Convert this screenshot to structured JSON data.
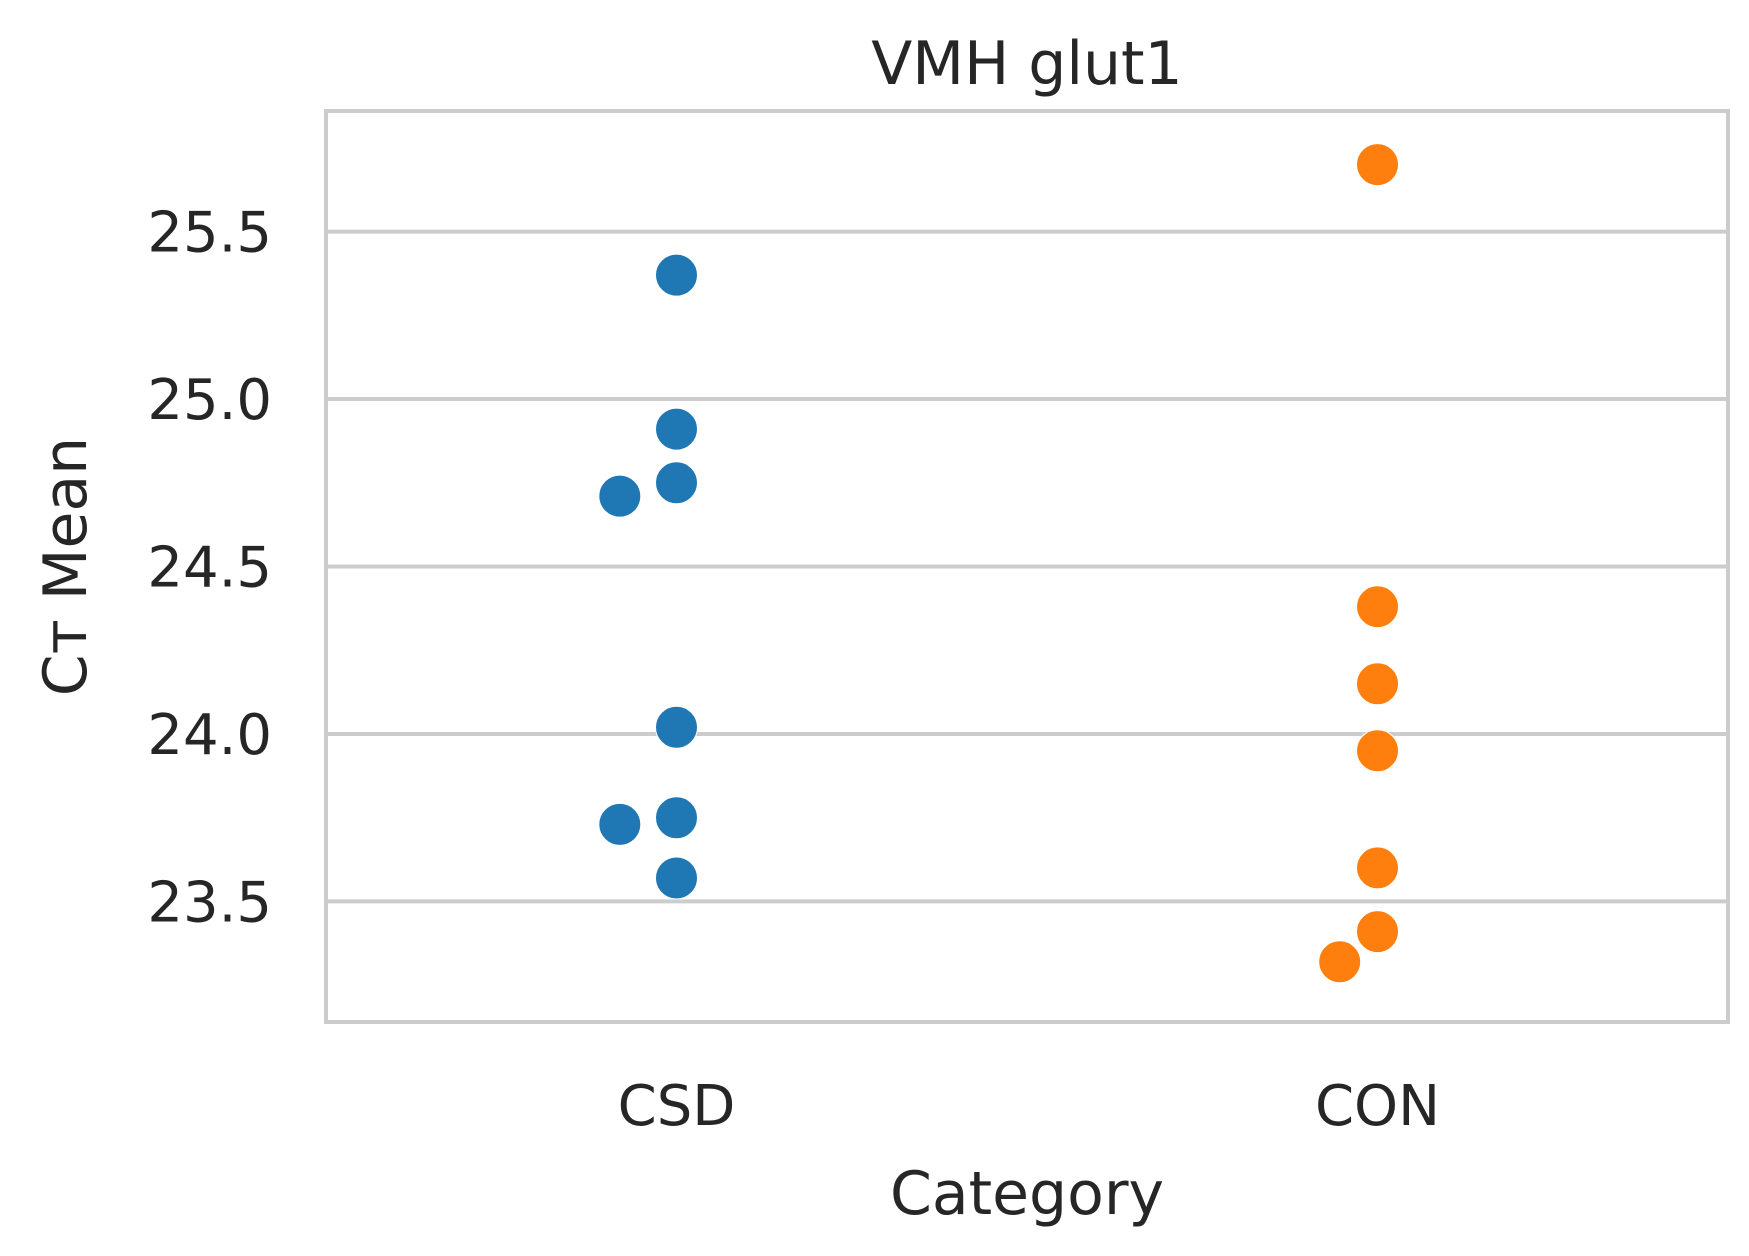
{
  "chart_data": {
    "type": "scatter",
    "subtype": "swarm",
    "title": "VMH glut1",
    "xlabel": "Category",
    "ylabel": "Cт Mean",
    "categories": [
      "CSD",
      "CON"
    ],
    "ylim": [
      23.14,
      25.86
    ],
    "yticks": [
      23.5,
      24.0,
      24.5,
      25.0,
      25.5
    ],
    "ytick_labels": [
      "23.5",
      "24.0",
      "24.5",
      "25.0",
      "25.5"
    ],
    "grid": "horizontal",
    "legend": "none",
    "series": [
      {
        "category": "CSD",
        "color": "#1f77b4",
        "values": [
          25.37,
          24.91,
          24.75,
          24.71,
          24.02,
          23.75,
          23.73,
          23.57
        ]
      },
      {
        "category": "CON",
        "color": "#ff7f0e",
        "values": [
          25.7,
          24.38,
          24.15,
          23.95,
          23.6,
          23.41,
          23.32
        ]
      }
    ],
    "colors": {
      "grid": "#cccccc",
      "text": "#262626",
      "background": "#ffffff"
    }
  }
}
